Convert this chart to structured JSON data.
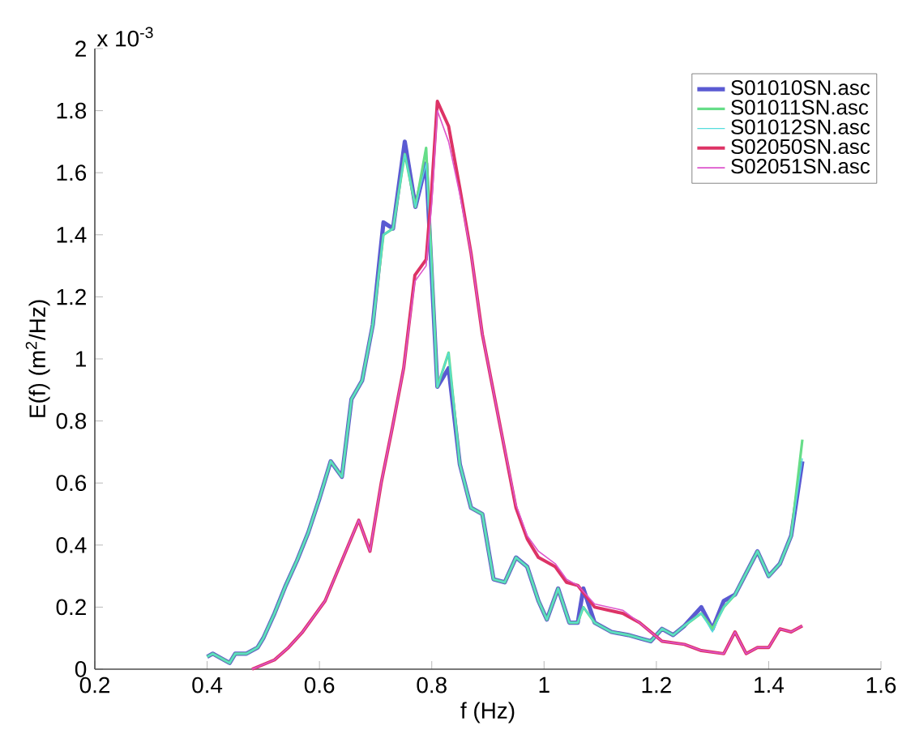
{
  "chart_data": {
    "type": "line",
    "xlabel": "f (Hz)",
    "ylabel": "E(f) (m$^{2}$/Hz)",
    "annotations": [
      "x 10$^{-3}$"
    ],
    "xlim": [
      0.2,
      1.6
    ],
    "xticks": [
      0.2,
      0.4,
      0.6,
      0.8,
      1,
      1.2,
      1.4,
      1.6
    ],
    "ylim": [
      0,
      2
    ],
    "yticks": [
      0,
      0.2,
      0.4,
      0.6,
      0.8,
      1,
      1.2,
      1.4,
      1.6,
      1.8,
      2
    ],
    "legend": "top right",
    "grid": false,
    "marker": "none",
    "line_style": "solid",
    "series": [
      {
        "name": "S01010SN.asc",
        "color": "#5a5ad2",
        "x": [
          0.4,
          0.41,
          0.43,
          0.44,
          0.45,
          0.47,
          0.49,
          0.5,
          0.52,
          0.54,
          0.56,
          0.58,
          0.6,
          0.62,
          0.64,
          0.657,
          0.676,
          0.695,
          0.714,
          0.731,
          0.752,
          0.771,
          0.79,
          0.81,
          0.83,
          0.85,
          0.87,
          0.89,
          0.91,
          0.93,
          0.95,
          0.97,
          0.99,
          1.005,
          1.025,
          1.045,
          1.06,
          1.07,
          1.09,
          1.12,
          1.15,
          1.17,
          1.19,
          1.21,
          1.23,
          1.25,
          1.28,
          1.3,
          1.32,
          1.34,
          1.36,
          1.38,
          1.4,
          1.42,
          1.44,
          1.46
        ],
        "values": [
          0.04,
          0.05,
          0.03,
          0.02,
          0.05,
          0.05,
          0.07,
          0.1,
          0.18,
          0.27,
          0.35,
          0.44,
          0.55,
          0.67,
          0.62,
          0.87,
          0.93,
          1.11,
          1.44,
          1.42,
          1.7,
          1.49,
          1.63,
          0.91,
          0.97,
          0.66,
          0.52,
          0.5,
          0.29,
          0.28,
          0.36,
          0.33,
          0.22,
          0.16,
          0.26,
          0.15,
          0.15,
          0.26,
          0.15,
          0.12,
          0.11,
          0.1,
          0.09,
          0.13,
          0.11,
          0.14,
          0.2,
          0.13,
          0.22,
          0.24,
          0.31,
          0.38,
          0.3,
          0.34,
          0.43,
          0.67
        ]
      },
      {
        "name": "S01011SN.asc",
        "color": "#66dd88",
        "x": [
          0.4,
          0.41,
          0.43,
          0.44,
          0.45,
          0.47,
          0.49,
          0.5,
          0.52,
          0.54,
          0.56,
          0.58,
          0.6,
          0.62,
          0.64,
          0.657,
          0.676,
          0.695,
          0.714,
          0.731,
          0.752,
          0.771,
          0.79,
          0.81,
          0.83,
          0.85,
          0.87,
          0.89,
          0.91,
          0.93,
          0.95,
          0.97,
          0.99,
          1.005,
          1.025,
          1.045,
          1.06,
          1.07,
          1.09,
          1.12,
          1.15,
          1.17,
          1.19,
          1.21,
          1.23,
          1.25,
          1.28,
          1.3,
          1.32,
          1.34,
          1.36,
          1.38,
          1.4,
          1.42,
          1.44,
          1.46
        ],
        "values": [
          0.04,
          0.05,
          0.03,
          0.02,
          0.05,
          0.05,
          0.07,
          0.1,
          0.18,
          0.27,
          0.35,
          0.44,
          0.55,
          0.67,
          0.62,
          0.87,
          0.93,
          1.11,
          1.4,
          1.42,
          1.66,
          1.49,
          1.68,
          0.91,
          1.02,
          0.66,
          0.52,
          0.5,
          0.29,
          0.28,
          0.36,
          0.33,
          0.22,
          0.16,
          0.26,
          0.15,
          0.15,
          0.2,
          0.15,
          0.12,
          0.11,
          0.1,
          0.09,
          0.13,
          0.11,
          0.14,
          0.18,
          0.13,
          0.2,
          0.24,
          0.31,
          0.38,
          0.3,
          0.34,
          0.43,
          0.74
        ]
      },
      {
        "name": "S01012SN.asc",
        "color": "#55dddd",
        "x": [
          0.4,
          0.41,
          0.43,
          0.44,
          0.45,
          0.47,
          0.49,
          0.5,
          0.52,
          0.54,
          0.56,
          0.58,
          0.6,
          0.62,
          0.64,
          0.657,
          0.676,
          0.695,
          0.714,
          0.731,
          0.752,
          0.771,
          0.79,
          0.81,
          0.83,
          0.85,
          0.87,
          0.89,
          0.91,
          0.93,
          0.95,
          0.97,
          0.99,
          1.005,
          1.025,
          1.045,
          1.06,
          1.07,
          1.09,
          1.12,
          1.15,
          1.17,
          1.19,
          1.21,
          1.23,
          1.25,
          1.28,
          1.3,
          1.32,
          1.34,
          1.36,
          1.38,
          1.4,
          1.42,
          1.44,
          1.46
        ],
        "values": [
          0.04,
          0.05,
          0.03,
          0.02,
          0.05,
          0.05,
          0.07,
          0.1,
          0.18,
          0.27,
          0.35,
          0.44,
          0.55,
          0.67,
          0.62,
          0.87,
          0.93,
          1.11,
          1.4,
          1.42,
          1.66,
          1.49,
          1.63,
          0.91,
          1.02,
          0.66,
          0.52,
          0.5,
          0.29,
          0.28,
          0.36,
          0.33,
          0.22,
          0.16,
          0.26,
          0.15,
          0.15,
          0.2,
          0.15,
          0.12,
          0.11,
          0.1,
          0.09,
          0.13,
          0.11,
          0.14,
          0.18,
          0.12,
          0.2,
          0.24,
          0.31,
          0.38,
          0.3,
          0.34,
          0.43,
          0.68
        ]
      },
      {
        "name": "S02050SN.asc",
        "color": "#dd3366",
        "x": [
          0.48,
          0.52,
          0.545,
          0.57,
          0.61,
          0.64,
          0.67,
          0.69,
          0.71,
          0.73,
          0.75,
          0.77,
          0.79,
          0.8,
          0.81,
          0.83,
          0.85,
          0.87,
          0.89,
          0.92,
          0.95,
          0.97,
          0.99,
          1.02,
          1.04,
          1.06,
          1.09,
          1.14,
          1.17,
          1.21,
          1.25,
          1.28,
          1.32,
          1.34,
          1.36,
          1.38,
          1.4,
          1.42,
          1.44,
          1.46
        ],
        "values": [
          0.0,
          0.03,
          0.07,
          0.12,
          0.22,
          0.35,
          0.48,
          0.38,
          0.6,
          0.78,
          0.97,
          1.27,
          1.32,
          1.55,
          1.83,
          1.75,
          1.55,
          1.34,
          1.08,
          0.8,
          0.52,
          0.42,
          0.36,
          0.33,
          0.28,
          0.27,
          0.2,
          0.18,
          0.15,
          0.09,
          0.08,
          0.06,
          0.05,
          0.12,
          0.05,
          0.07,
          0.07,
          0.13,
          0.12,
          0.14
        ]
      },
      {
        "name": "S02051SN.asc",
        "color": "#dd55cc",
        "x": [
          0.48,
          0.52,
          0.545,
          0.57,
          0.61,
          0.64,
          0.67,
          0.69,
          0.71,
          0.73,
          0.75,
          0.77,
          0.79,
          0.8,
          0.81,
          0.83,
          0.85,
          0.87,
          0.89,
          0.92,
          0.95,
          0.97,
          0.99,
          1.02,
          1.04,
          1.06,
          1.09,
          1.14,
          1.17,
          1.21,
          1.25,
          1.28,
          1.32,
          1.34,
          1.36,
          1.38,
          1.4,
          1.42,
          1.44,
          1.46
        ],
        "values": [
          0.0,
          0.03,
          0.07,
          0.12,
          0.22,
          0.35,
          0.48,
          0.38,
          0.6,
          0.78,
          0.97,
          1.25,
          1.3,
          1.5,
          1.8,
          1.7,
          1.53,
          1.34,
          1.08,
          0.8,
          0.53,
          0.43,
          0.38,
          0.34,
          0.29,
          0.27,
          0.21,
          0.19,
          0.15,
          0.09,
          0.08,
          0.06,
          0.05,
          0.12,
          0.05,
          0.07,
          0.07,
          0.13,
          0.12,
          0.14
        ]
      }
    ]
  }
}
